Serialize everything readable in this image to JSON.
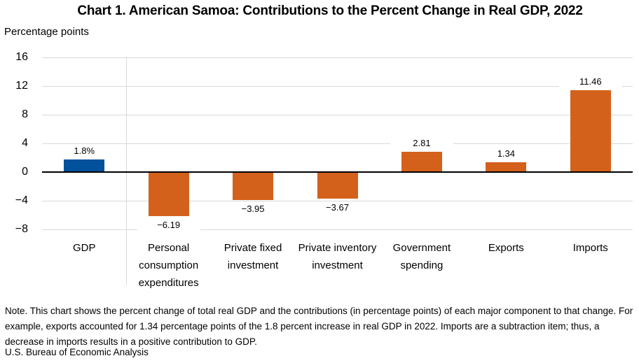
{
  "header": {
    "title": "Chart 1. American Samoa: Contributions to the Percent Change in Real GDP, 2022",
    "unit_label": "Percentage points"
  },
  "footer": {
    "note": "Note. This chart shows the percent change of total real GDP and the contributions (in percentage points) of each major component to that change. For example, exports accounted for 1.34 percentage points of the 1.8 percent increase in real GDP in 2022. Imports are a subtraction item; thus, a decrease in imports results in a positive contribution to GDP.",
    "source": "U.S. Bureau of Economic Analysis"
  },
  "colors": {
    "gdp_bar": "#01519c",
    "component_bar": "#d4611b",
    "gridline": "#d9d9d9",
    "zero_line": "#000000"
  },
  "chart_data": {
    "type": "bar",
    "title": "Chart 1. American Samoa: Contributions to the Percent Change in Real GDP, 2022",
    "xlabel": "",
    "ylabel": "Percentage points",
    "categories": [
      "GDP",
      "Personal consumption expenditures",
      "Private fixed investment",
      "Private inventory investment",
      "Government spending",
      "Exports",
      "Imports"
    ],
    "values": [
      1.8,
      -6.19,
      -3.95,
      -3.67,
      2.81,
      1.34,
      11.46
    ],
    "data_labels": [
      "1.8%",
      "−6.19",
      "−3.95",
      "−3.67",
      "2.81",
      "1.34",
      "11.46"
    ],
    "bar_color_keys": [
      "gdp_bar",
      "component_bar",
      "component_bar",
      "component_bar",
      "component_bar",
      "component_bar",
      "component_bar"
    ],
    "ylim": [
      -8,
      16
    ],
    "yticks": [
      16,
      12,
      8,
      4,
      0,
      -4,
      -8
    ],
    "ytick_labels": [
      "16",
      "12",
      "8",
      "4",
      "0",
      "−4",
      "−8"
    ],
    "grid": true,
    "legend": false,
    "separator_after_first_category": true
  }
}
